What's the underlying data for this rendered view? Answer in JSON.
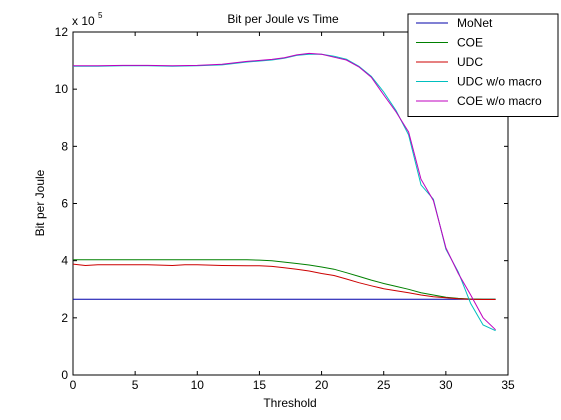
{
  "chart_data": {
    "type": "line",
    "title": "Bit per Joule vs Time",
    "xlabel": "Threshold",
    "ylabel": "Bit per Joule",
    "y_exponent_base": "x 10",
    "y_exponent_power": "5",
    "xlim": [
      0,
      35
    ],
    "ylim": [
      0,
      12
    ],
    "x_ticks": [
      0,
      5,
      10,
      15,
      20,
      25,
      30,
      35
    ],
    "y_ticks": [
      0,
      2,
      4,
      6,
      8,
      10,
      12
    ],
    "grid": false,
    "legend_position": "top-right",
    "series": [
      {
        "name": "MoNet",
        "color": "#0000aa",
        "x": [
          0,
          34
        ],
        "y": [
          2.65,
          2.65
        ]
      },
      {
        "name": "COE",
        "color": "#008000",
        "x": [
          0,
          2,
          4,
          6,
          8,
          10,
          12,
          14,
          15,
          16,
          17,
          18,
          19,
          20,
          21,
          22,
          23,
          24,
          25,
          26,
          27,
          28,
          29,
          30,
          31,
          32,
          33,
          34
        ],
        "y": [
          4.03,
          4.03,
          4.03,
          4.03,
          4.03,
          4.03,
          4.03,
          4.03,
          4.02,
          4.0,
          3.95,
          3.9,
          3.85,
          3.78,
          3.7,
          3.58,
          3.45,
          3.32,
          3.2,
          3.1,
          3.0,
          2.88,
          2.8,
          2.72,
          2.68,
          2.66,
          2.65,
          2.65
        ]
      },
      {
        "name": "UDC",
        "color": "#cc0000",
        "x": [
          0,
          1,
          2,
          4,
          6,
          8,
          9,
          10,
          12,
          14,
          15,
          16,
          17,
          18,
          19,
          20,
          21,
          22,
          23,
          24,
          25,
          26,
          27,
          28,
          29,
          30,
          31,
          32,
          33,
          34
        ],
        "y": [
          3.88,
          3.83,
          3.86,
          3.86,
          3.86,
          3.83,
          3.86,
          3.86,
          3.83,
          3.82,
          3.82,
          3.8,
          3.75,
          3.7,
          3.64,
          3.55,
          3.48,
          3.36,
          3.23,
          3.12,
          3.02,
          2.95,
          2.88,
          2.8,
          2.74,
          2.7,
          2.67,
          2.65,
          2.64,
          2.64
        ]
      },
      {
        "name": "UDC w/o macro",
        "color": "#00bfbf",
        "x": [
          0,
          2,
          4,
          6,
          8,
          10,
          12,
          14,
          16,
          17,
          18,
          19,
          20,
          21,
          22,
          23,
          24,
          25,
          26,
          27,
          28,
          29,
          30,
          31,
          32,
          33,
          34
        ],
        "y": [
          10.8,
          10.8,
          10.82,
          10.82,
          10.8,
          10.82,
          10.85,
          10.95,
          11.02,
          11.08,
          11.18,
          11.22,
          11.22,
          11.15,
          11.05,
          10.8,
          10.45,
          9.9,
          9.25,
          8.4,
          6.65,
          6.15,
          4.4,
          3.6,
          2.5,
          1.75,
          1.55
        ]
      },
      {
        "name": "COE w/o macro",
        "color": "#bf00bf",
        "x": [
          0,
          2,
          4,
          6,
          8,
          10,
          12,
          14,
          16,
          17,
          18,
          19,
          20,
          21,
          22,
          23,
          24,
          25,
          26,
          27,
          28,
          29,
          30,
          31,
          32,
          33,
          34
        ],
        "y": [
          10.82,
          10.82,
          10.83,
          10.83,
          10.82,
          10.83,
          10.87,
          10.97,
          11.04,
          11.1,
          11.2,
          11.25,
          11.22,
          11.12,
          11.02,
          10.78,
          10.42,
          9.8,
          9.2,
          8.5,
          6.85,
          6.1,
          4.45,
          3.55,
          2.8,
          2.0,
          1.58
        ]
      }
    ]
  }
}
